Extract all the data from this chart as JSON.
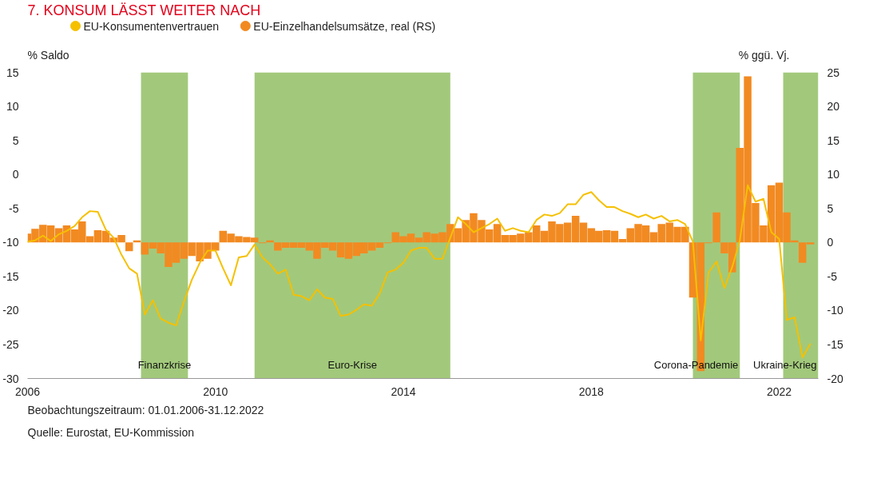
{
  "chart_data": {
    "type": "bar",
    "title": "7.   KONSUM LÄSST WEITER NACH",
    "ylabel": "% Saldo",
    "y2label": "% ggü. Vj.",
    "x": [
      "2006-01",
      "2006-03",
      "2006-05",
      "2006-07",
      "2006-09",
      "2006-11",
      "2007-01",
      "2007-03",
      "2007-05",
      "2007-07",
      "2007-09",
      "2007-11",
      "2008-01",
      "2008-03",
      "2008-05",
      "2008-07",
      "2008-09",
      "2008-11",
      "2009-01",
      "2009-03",
      "2009-05",
      "2009-07",
      "2009-09",
      "2009-11",
      "2010-01",
      "2010-03",
      "2010-05",
      "2010-07",
      "2010-09",
      "2010-11",
      "2011-01",
      "2011-03",
      "2011-05",
      "2011-07",
      "2011-09",
      "2011-11",
      "2012-01",
      "2012-03",
      "2012-05",
      "2012-07",
      "2012-09",
      "2012-11",
      "2013-01",
      "2013-03",
      "2013-05",
      "2013-07",
      "2013-09",
      "2013-11",
      "2014-01",
      "2014-03",
      "2014-05",
      "2014-07",
      "2014-09",
      "2014-11",
      "2015-01",
      "2015-03",
      "2015-05",
      "2015-07",
      "2015-09",
      "2015-11",
      "2016-01",
      "2016-03",
      "2016-05",
      "2016-07",
      "2016-09",
      "2016-11",
      "2017-01",
      "2017-03",
      "2017-05",
      "2017-07",
      "2017-09",
      "2017-11",
      "2018-01",
      "2018-03",
      "2018-05",
      "2018-07",
      "2018-09",
      "2018-11",
      "2019-01",
      "2019-03",
      "2019-05",
      "2019-07",
      "2019-09",
      "2019-11",
      "2020-01",
      "2020-03",
      "2020-05",
      "2020-07",
      "2020-09",
      "2020-11",
      "2021-01",
      "2021-03",
      "2021-05",
      "2021-07",
      "2021-09",
      "2021-11",
      "2022-01",
      "2022-03",
      "2022-05",
      "2022-07",
      "2022-09"
    ],
    "xlim": [
      "2006-01",
      "2022-11"
    ],
    "xticks": [
      "2006",
      "2010",
      "2014",
      "2018",
      "2022"
    ],
    "ylim": [
      -30,
      15
    ],
    "yticks": [
      -30,
      -25,
      -20,
      -15,
      -10,
      -5,
      0,
      5,
      10,
      15
    ],
    "y2lim": [
      -20,
      25
    ],
    "y2ticks": [
      -20,
      -15,
      -10,
      -5,
      0,
      5,
      10,
      15,
      20,
      25
    ],
    "grid": false,
    "legend": "top",
    "series": [
      {
        "name": "EU-Einzelhandelsumsätze, real (RS)",
        "axis": "y2",
        "color": "#f28a22",
        "values": [
          1.3,
          2.0,
          2.6,
          2.5,
          2.1,
          2.5,
          1.9,
          3.1,
          0.9,
          1.8,
          1.7,
          0.7,
          1.1,
          -1.3,
          0.3,
          -1.8,
          -0.9,
          -1.6,
          -3.6,
          -3.0,
          -2.4,
          -2.0,
          -2.8,
          -2.4,
          -1.2,
          1.7,
          1.3,
          0.9,
          0.8,
          0.7,
          -0.1,
          0.3,
          -1.2,
          -0.8,
          -0.8,
          -0.8,
          -1.2,
          -2.4,
          -0.8,
          -1.2,
          -2.2,
          -2.4,
          -2.0,
          -1.6,
          -1.2,
          -0.8,
          -0.1,
          1.5,
          0.9,
          1.3,
          0.7,
          1.5,
          1.3,
          1.5,
          2.7,
          2.1,
          3.3,
          4.3,
          3.3,
          1.9,
          2.7,
          1.1,
          1.1,
          1.3,
          1.5,
          2.5,
          1.7,
          3.1,
          2.7,
          2.9,
          3.9,
          2.9,
          2.1,
          1.7,
          1.8,
          1.7,
          0.5,
          2.1,
          2.7,
          2.5,
          1.5,
          2.7,
          2.9,
          2.3,
          2.3,
          -8.1,
          -18.9,
          -0.1,
          4.4,
          -1.6,
          -4.4,
          13.9,
          24.4,
          5.8,
          2.5,
          8.4,
          8.8,
          4.4,
          0.3,
          -3.0,
          -0.3
        ]
      },
      {
        "name": "EU-Konsumentenvertrauen",
        "type": "line",
        "color": "#f5c000",
        "values": [
          -9.9,
          -9.7,
          -9.0,
          -9.8,
          -8.8,
          -8.3,
          -7.6,
          -6.3,
          -5.4,
          -5.5,
          -8.1,
          -9.3,
          -11.8,
          -13.8,
          -14.6,
          -20.6,
          -18.5,
          -21.2,
          -21.8,
          -22.2,
          -18.7,
          -15.5,
          -13.0,
          -11.2,
          -11.2,
          -13.8,
          -16.3,
          -12.2,
          -12.0,
          -10.3,
          -12.2,
          -13.2,
          -14.6,
          -14.0,
          -17.7,
          -17.9,
          -18.5,
          -16.9,
          -18.1,
          -18.3,
          -20.8,
          -20.6,
          -19.9,
          -19.1,
          -19.3,
          -17.5,
          -14.4,
          -14.0,
          -13.0,
          -11.2,
          -10.8,
          -10.8,
          -12.4,
          -12.4,
          -9.3,
          -6.3,
          -7.3,
          -8.5,
          -7.9,
          -7.3,
          -6.5,
          -8.3,
          -7.9,
          -8.3,
          -8.5,
          -6.7,
          -5.9,
          -6.1,
          -5.7,
          -4.4,
          -4.4,
          -3.0,
          -2.6,
          -3.8,
          -4.8,
          -4.8,
          -5.4,
          -5.8,
          -6.3,
          -5.9,
          -6.5,
          -6.1,
          -6.9,
          -6.7,
          -7.3,
          -9.9,
          -24.4,
          -14.4,
          -12.8,
          -16.7,
          -13.6,
          -9.7,
          -1.6,
          -4.0,
          -3.6,
          -8.5,
          -9.5,
          -21.4,
          -21.0,
          -26.9,
          -24.9
        ]
      }
    ],
    "bands": [
      {
        "axis": "x",
        "from": "2008-06",
        "to": "2009-06",
        "label": "Finanzkrise",
        "color": "#a2c97b"
      },
      {
        "axis": "x",
        "from": "2010-11",
        "to": "2015-01",
        "label": "Euro-Krise",
        "color": "#a2c97b"
      },
      {
        "axis": "x",
        "from": "2020-03",
        "to": "2021-03",
        "label": "Corona-Pandemie",
        "color": "#a2c97b"
      },
      {
        "axis": "x",
        "from": "2022-02",
        "to": "2022-11",
        "label": "Ukraine-Krieg",
        "color": "#a2c97b"
      }
    ],
    "annotations": [
      "Quelle: Eurostat, EU-Kommission",
      "Beobachtungszeitraum: 01.01.2006-31.12.2022"
    ]
  }
}
